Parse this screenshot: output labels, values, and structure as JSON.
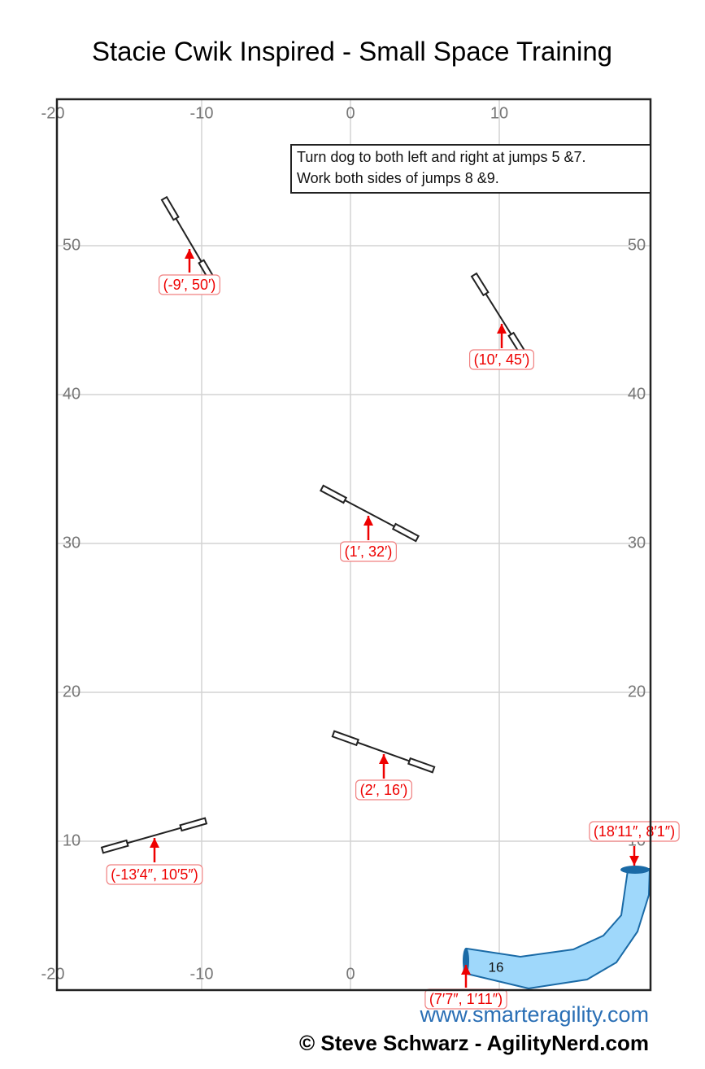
{
  "title": "Stacie Cwik Inspired - Small Space Training",
  "note": [
    "Turn dog to both left and right at jumps 5 &7.",
    "Work both sides of jumps 8 &9."
  ],
  "axes": {
    "xticks": [
      -20,
      -10,
      0,
      10
    ],
    "yticks": [
      10,
      20,
      30,
      40,
      50
    ]
  },
  "obstacles": [
    {
      "label": "(-9′, 50′)"
    },
    {
      "label": "(10′, 45′)"
    },
    {
      "label": "(1′, 32′)"
    },
    {
      "label": "(2′, 16′)"
    },
    {
      "label": "(-13′4″, 10′5″)"
    },
    {
      "label": "(18′11″, 8′1″)"
    },
    {
      "label": "(7′7″, 1′11″)"
    }
  ],
  "tunnel_number": "16",
  "footer": {
    "url": "www.smarteragility.com",
    "copyright": "© Steve Schwarz - AgilityNerd.com"
  }
}
